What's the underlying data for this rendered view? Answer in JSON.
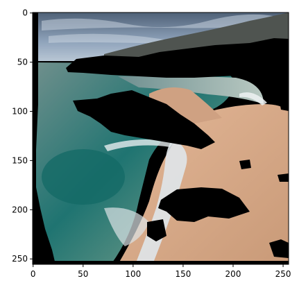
{
  "image": {
    "subject": "coastal-beach-scene",
    "pixel_grid": {
      "width": 256,
      "height": 256
    },
    "colors": {
      "sky_top": "#55657a",
      "sky_low": "#9fb1c6",
      "mountain": "#4f5450",
      "sea_deep": "#1f7471",
      "sea_light": "#7f9f93",
      "foam": "#dfe6ea",
      "sand": "#d9a987",
      "sand_dark": "#b98e70",
      "masked": "#000000",
      "frame": "#000000"
    }
  },
  "axes": {
    "x": {
      "ticks": [
        0,
        50,
        100,
        150,
        200,
        250
      ],
      "labels": [
        "0",
        "50",
        "100",
        "150",
        "200",
        "250"
      ],
      "range": [
        -0.5,
        255.5
      ]
    },
    "y": {
      "ticks": [
        0,
        50,
        100,
        150,
        200,
        250
      ],
      "labels": [
        "0",
        "50",
        "100",
        "150",
        "200",
        "250"
      ],
      "range": [
        -0.5,
        255.5
      ],
      "inverted": true
    }
  }
}
